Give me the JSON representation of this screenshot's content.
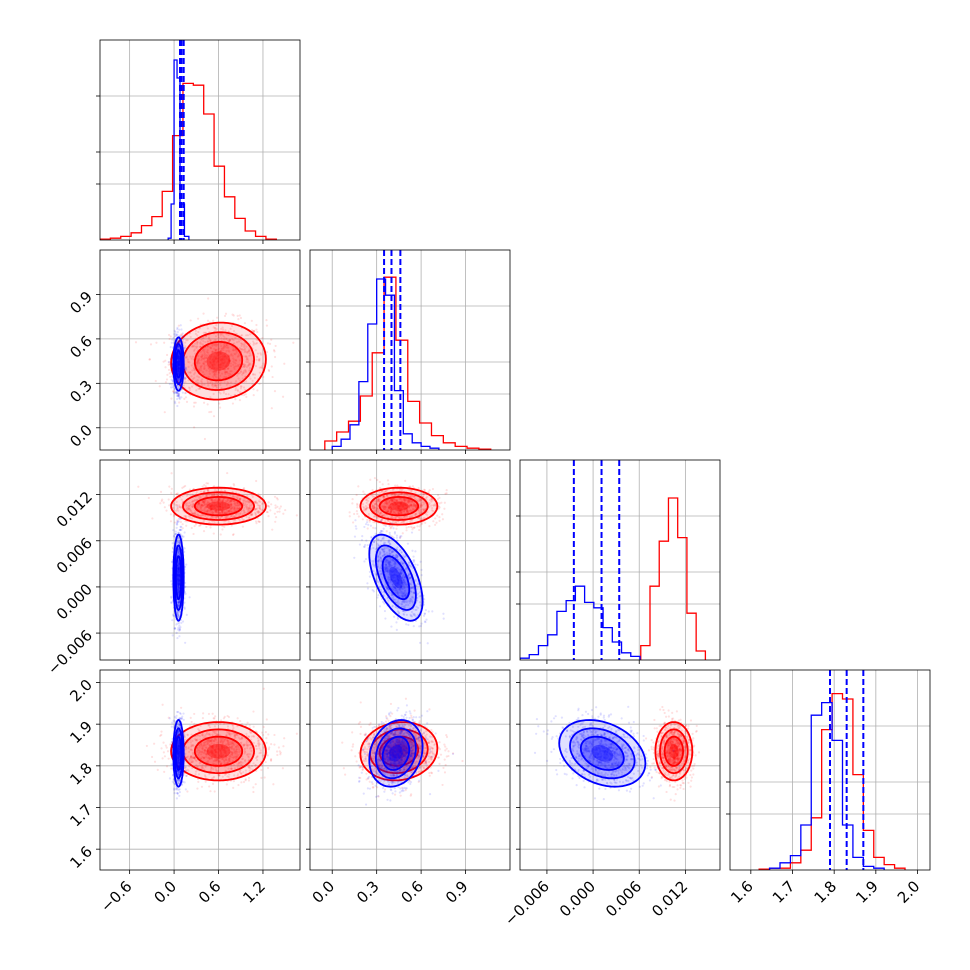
{
  "chart_data": {
    "type": "corner",
    "title": "",
    "grid": true,
    "colors": {
      "series_a": "#ff0000",
      "series_b": "#0000ff"
    },
    "parameters": [
      {
        "range": [
          -1.0,
          1.7
        ],
        "ticks": [
          -0.6,
          0.0,
          0.6,
          1.2
        ],
        "tick_labels": [
          "−0.6",
          "0.0",
          "0.6",
          "1.2"
        ]
      },
      {
        "range": [
          -0.15,
          1.2
        ],
        "ticks": [
          0.0,
          0.3,
          0.6,
          0.9
        ],
        "tick_labels": [
          "0.0",
          "0.3",
          "0.6",
          "0.9"
        ]
      },
      {
        "range": [
          -0.0095,
          0.0165
        ],
        "ticks": [
          -0.006,
          0.0,
          0.006,
          0.012
        ],
        "tick_labels": [
          "−0.006",
          "0.000",
          "0.006",
          "0.012"
        ]
      },
      {
        "range": [
          1.55,
          2.03
        ],
        "ticks": [
          1.6,
          1.7,
          1.8,
          1.9,
          2.0
        ],
        "tick_labels": [
          "1.6",
          "1.7",
          "1.8",
          "1.9",
          "2.0"
        ]
      }
    ],
    "series": [
      {
        "color": "#ff0000",
        "hist_heights": [
          [
            0.005,
            0.01,
            0.02,
            0.04,
            0.08,
            0.13,
            0.27,
            0.58,
            0.87,
            0.86,
            0.7,
            0.41,
            0.24,
            0.12,
            0.05,
            0.02,
            0.005
          ],
          [
            0.05,
            0.1,
            0.16,
            0.3,
            0.54,
            0.96,
            0.61,
            0.27,
            0.15,
            0.08,
            0.04,
            0.02,
            0.01,
            0.005
          ],
          [
            0.08,
            0.41,
            0.66,
            0.9,
            0.68,
            0.26,
            0.05
          ],
          [
            0.005,
            0.01,
            0.01,
            0.04,
            0.11,
            0.29,
            0.78,
            0.98,
            0.95,
            0.53,
            0.22,
            0.07,
            0.03,
            0.01
          ]
        ],
        "hist_edges": [
          [
            -1.0,
            -0.86,
            -0.72,
            -0.58,
            -0.44,
            -0.3,
            -0.16,
            -0.02,
            0.12,
            0.26,
            0.4,
            0.54,
            0.68,
            0.82,
            0.96,
            1.1,
            1.24,
            1.38
          ],
          [
            -0.05,
            0.03,
            0.11,
            0.19,
            0.27,
            0.35,
            0.43,
            0.51,
            0.59,
            0.67,
            0.75,
            0.83,
            0.91,
            0.99,
            1.07
          ],
          [
            0.0062,
            0.0074,
            0.0086,
            0.0098,
            0.011,
            0.0122,
            0.0134,
            0.0146
          ],
          [
            1.62,
            1.645,
            1.67,
            1.695,
            1.72,
            1.745,
            1.77,
            1.795,
            1.82,
            1.845,
            1.87,
            1.895,
            1.92,
            1.945,
            1.97
          ]
        ],
        "mean": [
          0.6,
          0.45,
          0.0105,
          1.835
        ],
        "std": [
          0.32,
          0.13,
          0.0012,
          0.035
        ],
        "corr": [
          [
            1,
            0.05,
            0,
            0
          ],
          [
            0.05,
            1,
            0,
            0.1
          ],
          [
            0,
            0,
            1,
            0
          ],
          [
            0,
            0.1,
            0,
            1
          ]
        ]
      },
      {
        "color": "#0000ff",
        "hist_heights": [
          [
            0.01,
            0.2,
            1.0,
            0.9,
            0.2,
            0.02
          ],
          [
            0.02,
            0.06,
            0.14,
            0.38,
            0.7,
            0.95,
            0.86,
            0.33,
            0.09,
            0.04,
            0.02,
            0.01
          ],
          [
            0.01,
            0.03,
            0.08,
            0.14,
            0.27,
            0.33,
            0.41,
            0.32,
            0.29,
            0.18,
            0.1,
            0.04,
            0.02
          ],
          [
            0.01,
            0.04,
            0.08,
            0.25,
            0.86,
            0.93,
            0.72,
            0.25,
            0.07,
            0.02,
            0.01
          ]
        ],
        "hist_edges": [
          [
            -0.08,
            -0.04,
            0.0,
            0.04,
            0.08,
            0.14,
            0.2
          ],
          [
            0.0,
            0.06,
            0.12,
            0.18,
            0.24,
            0.3,
            0.36,
            0.42,
            0.48,
            0.54,
            0.6,
            0.66,
            0.72
          ],
          [
            -0.0095,
            -0.0083,
            -0.0071,
            -0.0059,
            -0.0047,
            -0.0035,
            -0.0023,
            -0.0011,
            0.0001,
            0.0013,
            0.0025,
            0.0037,
            0.0049,
            0.0061
          ],
          [
            1.645,
            1.67,
            1.695,
            1.72,
            1.745,
            1.77,
            1.795,
            1.82,
            1.845,
            1.87,
            1.895,
            1.92
          ]
        ],
        "quantiles": [
          [
            0.08,
            0.1,
            0.13
          ],
          [
            0.35,
            0.4,
            0.46
          ],
          [
            -0.0025,
            0.0011,
            0.0034
          ],
          [
            1.79,
            1.83,
            1.87
          ]
        ],
        "mean": [
          0.06,
          0.43,
          0.0012,
          1.83
        ],
        "std": [
          0.035,
          0.09,
          0.0028,
          0.04
        ],
        "corr": [
          [
            1,
            0,
            0,
            0
          ],
          [
            0,
            1,
            -0.55,
            0.2
          ],
          [
            0,
            -0.55,
            1,
            -0.3
          ],
          [
            0,
            0.2,
            -0.3,
            1
          ]
        ]
      }
    ]
  }
}
